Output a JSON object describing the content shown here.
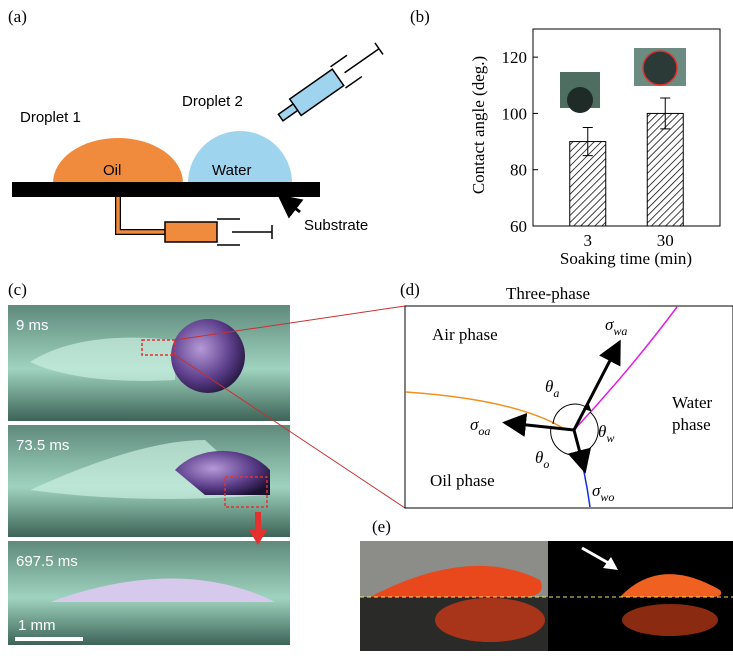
{
  "panel_a": {
    "label": "(a)",
    "droplet1": "Droplet 1",
    "droplet2": "Droplet 2",
    "oil": "Oil",
    "water": "Water",
    "substrate": "Substrate"
  },
  "chart_data": {
    "type": "bar",
    "label": "(b)",
    "ylabel": "Contact angle (deg.)",
    "xlabel": "Soaking time (min)",
    "categories": [
      "3",
      "30"
    ],
    "values": [
      90,
      100
    ],
    "errors": [
      5,
      5.5
    ],
    "color": "#ffffff",
    "ylim": [
      60,
      130
    ],
    "yticks": [
      60,
      80,
      100,
      120
    ]
  },
  "panel_c": {
    "label": "(c)",
    "frames": [
      "9 ms",
      "73.5 ms",
      "697.5 ms"
    ],
    "scale": "1 mm"
  },
  "panel_d": {
    "label": "(d)",
    "title": "Three-phase",
    "air": "Air phase",
    "water": [
      "Water",
      "phase"
    ],
    "oil": "Oil phase",
    "symbols": [
      {
        "base": "σ",
        "sub": "wa"
      },
      {
        "base": "θ",
        "sub": "a"
      },
      {
        "base": "σ",
        "sub": "oa"
      },
      {
        "base": "θ",
        "sub": "w"
      },
      {
        "base": "θ",
        "sub": "o"
      },
      {
        "base": "σ",
        "sub": "wo"
      }
    ]
  },
  "panel_e": {
    "label": "(e)"
  }
}
